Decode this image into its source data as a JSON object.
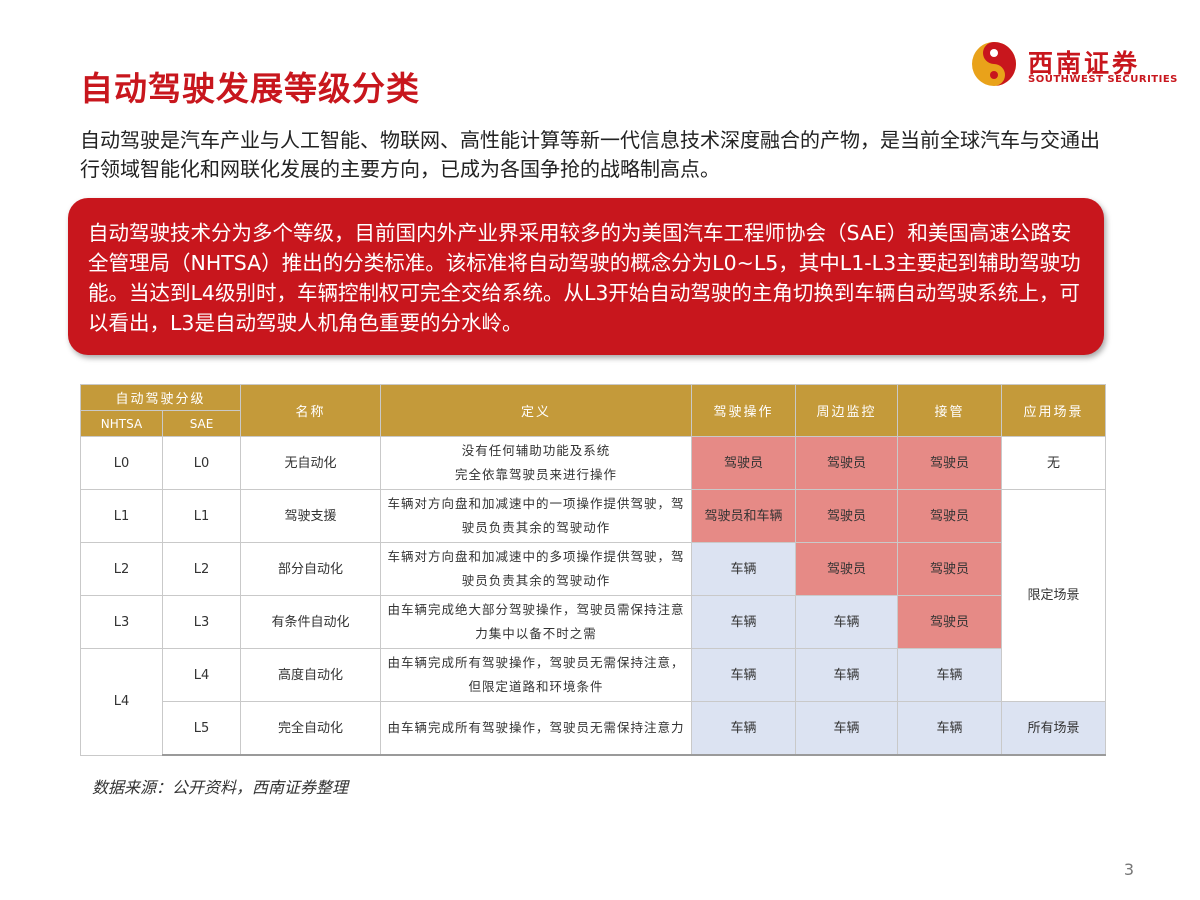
{
  "title": "自动驾驶发展等级分类",
  "logo": {
    "cn": "西南证券",
    "en": "SOUTHWEST SECURITIES",
    "colors": {
      "red": "#c8161d",
      "gold": "#e9a21a"
    }
  },
  "intro": "自动驾驶是汽车产业与人工智能、物联网、高性能计算等新一代信息技术深度融合的产物，是当前全球汽车与交通出行领域智能化和网联化发展的主要方向，已成为各国争抢的战略制高点。",
  "callout": "自动驾驶技术分为多个等级，目前国内外产业界采用较多的为美国汽车工程师协会（SAE）和美国高速公路安全管理局（NHTSA）推出的分类标准。该标准将自动驾驶的概念分为L0~L5，其中L1-L3主要起到辅助驾驶功能。当达到L4级别时，车辆控制权可完全交给系统。从L3开始自动驾驶的主角切换到车辆自动驾驶系统上，可以看出，L3是自动驾驶人机角色重要的分水岭。",
  "table": {
    "headers": {
      "group": "自动驾驶分级",
      "nhtsa": "NHTSA",
      "sae": "SAE",
      "name": "名称",
      "definition": "定义",
      "driving": "驾驶操作",
      "monitoring": "周边监控",
      "takeover": "接管",
      "scenario": "应用场景"
    },
    "rows": [
      {
        "nhtsa": "L0",
        "sae": "L0",
        "name": "无自动化",
        "definition": "没有任何辅助功能及系统\n完全依靠驾驶员来进行操作",
        "driving": "驾驶员",
        "monitoring": "驾驶员",
        "takeover": "驾驶员",
        "scenario": "无"
      },
      {
        "nhtsa": "L1",
        "sae": "L1",
        "name": "驾驶支援",
        "definition": "车辆对方向盘和加减速中的一项操作提供驾驶，驾驶员负责其余的驾驶动作",
        "driving": "驾驶员和车辆",
        "monitoring": "驾驶员",
        "takeover": "驾驶员"
      },
      {
        "nhtsa": "L2",
        "sae": "L2",
        "name": "部分自动化",
        "definition": "车辆对方向盘和加减速中的多项操作提供驾驶，驾驶员负责其余的驾驶动作",
        "driving": "车辆",
        "monitoring": "驾驶员",
        "takeover": "驾驶员"
      },
      {
        "nhtsa": "L3",
        "sae": "L3",
        "name": "有条件自动化",
        "definition": "由车辆完成绝大部分驾驶操作，驾驶员需保持注意力集中以备不时之需",
        "driving": "车辆",
        "monitoring": "车辆",
        "takeover": "驾驶员"
      },
      {
        "nhtsa": "L4",
        "sae": "L4",
        "name": "高度自动化",
        "definition": "由车辆完成所有驾驶操作，驾驶员无需保持注意，但限定道路和环境条件",
        "driving": "车辆",
        "monitoring": "车辆",
        "takeover": "车辆"
      },
      {
        "sae": "L5",
        "name": "完全自动化",
        "definition": "由车辆完成所有驾驶操作，驾驶员无需保持注意力",
        "driving": "车辆",
        "monitoring": "车辆",
        "takeover": "车辆",
        "scenario": "所有场景"
      }
    ],
    "merged_scenario": "限定场景"
  },
  "source": "数据来源：公开资料，西南证券整理",
  "page_number": "3"
}
